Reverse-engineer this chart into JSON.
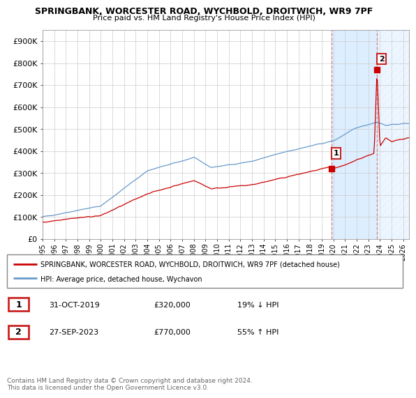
{
  "title": "SPRINGBANK, WORCESTER ROAD, WYCHBOLD, DROITWICH, WR9 7PF",
  "subtitle": "Price paid vs. HM Land Registry's House Price Index (HPI)",
  "ylabel_ticks": [
    "£0",
    "£100K",
    "£200K",
    "£300K",
    "£400K",
    "£500K",
    "£600K",
    "£700K",
    "£800K",
    "£900K"
  ],
  "ytick_values": [
    0,
    100000,
    200000,
    300000,
    400000,
    500000,
    600000,
    700000,
    800000,
    900000
  ],
  "ylim": [
    0,
    950000
  ],
  "xlim_start": 1995.0,
  "xlim_end": 2026.5,
  "legend_line1": "SPRINGBANK, WORCESTER ROAD, WYCHBOLD, DROITWICH, WR9 7PF (detached house)",
  "legend_line2": "HPI: Average price, detached house, Wychavon",
  "transaction1_label": "1",
  "transaction1_date": "31-OCT-2019",
  "transaction1_price": "£320,000",
  "transaction1_hpi": "19% ↓ HPI",
  "transaction2_label": "2",
  "transaction2_date": "27-SEP-2023",
  "transaction2_price": "£770,000",
  "transaction2_hpi": "55% ↑ HPI",
  "footnote": "Contains HM Land Registry data © Crown copyright and database right 2024.\nThis data is licensed under the Open Government Licence v3.0.",
  "red_color": "#cc0000",
  "blue_color": "#6699cc",
  "shade_color": "#ddeeff",
  "hatch_color": "#c0c8d8",
  "transaction1_x": 2019.83,
  "transaction2_x": 2023.75,
  "transaction1_y": 320000,
  "transaction2_y": 770000
}
